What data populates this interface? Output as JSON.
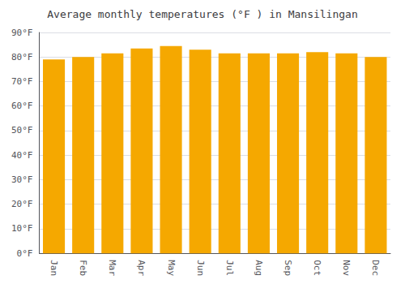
{
  "chart_data": {
    "type": "bar",
    "title": "Average monthly temperatures (°F ) in Mansilingan",
    "categories": [
      "Jan",
      "Feb",
      "Mar",
      "Apr",
      "May",
      "Jun",
      "Jul",
      "Aug",
      "Sep",
      "Oct",
      "Nov",
      "Dec"
    ],
    "values": [
      79.0,
      80.0,
      81.5,
      83.5,
      84.5,
      83.0,
      81.5,
      81.5,
      81.5,
      82.0,
      81.5,
      80.0
    ],
    "color": "#F5A800",
    "ylim": [
      0,
      90
    ],
    "yticks": [
      {
        "value": 0,
        "label": "0°F"
      },
      {
        "value": 10,
        "label": "10°F"
      },
      {
        "value": 20,
        "label": "20°F"
      },
      {
        "value": 30,
        "label": "30°F"
      },
      {
        "value": 40,
        "label": "40°F"
      },
      {
        "value": 50,
        "label": "50°F"
      },
      {
        "value": 60,
        "label": "60°F"
      },
      {
        "value": 70,
        "label": "70°F"
      },
      {
        "value": 80,
        "label": "80°F"
      },
      {
        "value": 90,
        "label": "90°F"
      }
    ],
    "grid": true
  }
}
